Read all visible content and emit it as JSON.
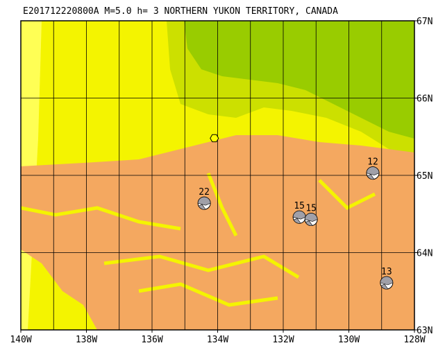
{
  "map": {
    "title": "E201712220800A M=5.0 h=  3 NORTHERN YUKON TERRITORY, CANADA",
    "lonlim": [
      -140,
      -128
    ],
    "latlim": [
      63,
      67
    ],
    "xticks": [
      {
        "value": -140,
        "label": "140W"
      },
      {
        "value": -138,
        "label": "138W"
      },
      {
        "value": -136,
        "label": "136W"
      },
      {
        "value": -134,
        "label": "134W"
      },
      {
        "value": -132,
        "label": "132W"
      },
      {
        "value": -130,
        "label": "130W"
      },
      {
        "value": -128,
        "label": "128W"
      }
    ],
    "yticks": [
      {
        "value": 63,
        "label": "63N"
      },
      {
        "value": 64,
        "label": "64N"
      },
      {
        "value": 65,
        "label": "65N"
      },
      {
        "value": 66,
        "label": "66N"
      },
      {
        "value": 67,
        "label": "67N"
      }
    ],
    "epicenter": {
      "lon": -134.1,
      "lat": 65.48
    },
    "events": [
      {
        "label": "12",
        "lon": -129.27,
        "lat": 65.03
      },
      {
        "label": "22",
        "lon": -134.41,
        "lat": 64.64
      },
      {
        "label": "15",
        "lon": -131.51,
        "lat": 64.46
      },
      {
        "label": "15",
        "lon": -131.15,
        "lat": 64.43
      },
      {
        "label": "13",
        "lon": -128.85,
        "lat": 63.61
      }
    ]
  }
}
